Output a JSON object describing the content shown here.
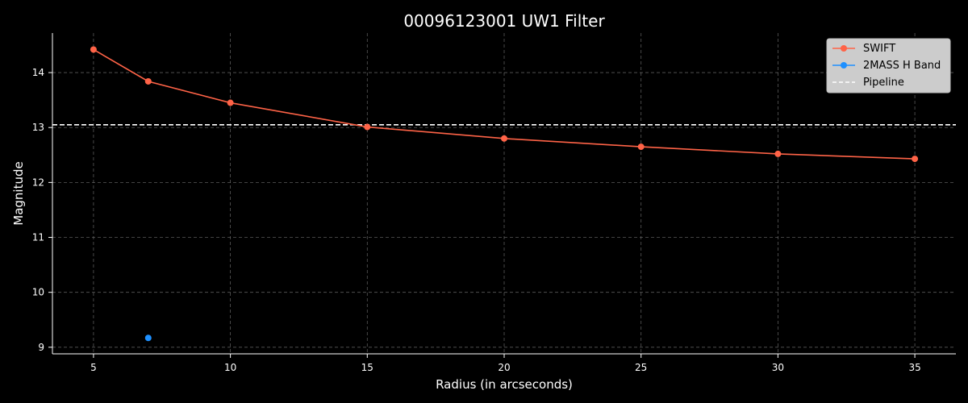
{
  "chart_data": {
    "type": "line",
    "title": "00096123001 UW1 Filter",
    "xlabel": "Radius (in arcseconds)",
    "ylabel": "Magnitude",
    "xlim": [
      3.5,
      36.5
    ],
    "ylim": [
      8.88,
      14.72
    ],
    "xticks": [
      5,
      10,
      15,
      20,
      25,
      30,
      35
    ],
    "yticks": [
      9,
      10,
      11,
      12,
      13,
      14
    ],
    "grid": true,
    "legend_position": "top-right",
    "series": [
      {
        "name": "SWIFT",
        "color": "#ff6347",
        "marker": "circle",
        "line": "solid",
        "x": [
          5,
          7,
          10,
          15,
          20,
          25,
          30,
          35
        ],
        "y": [
          14.42,
          13.84,
          13.45,
          13.01,
          12.8,
          12.65,
          12.52,
          12.43
        ]
      },
      {
        "name": "2MASS H Band",
        "color": "#1e90ff",
        "marker": "circle",
        "line": "solid",
        "x": [
          7
        ],
        "y": [
          9.17
        ]
      }
    ],
    "hlines": [
      {
        "name": "Pipeline",
        "color": "#ffffff",
        "line": "dashed",
        "y": 13.05
      }
    ]
  }
}
